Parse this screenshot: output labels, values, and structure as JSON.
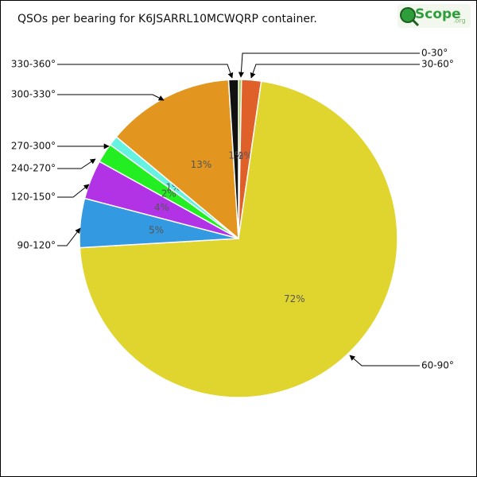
{
  "chart_data": {
    "type": "pie",
    "title": "QSOs per bearing for K6JSARRL10MCWQRP container.",
    "logo": "Scope",
    "logo_suffix": ".org",
    "categories": [
      "0-30°",
      "30-60°",
      "60-90°",
      "90-120°",
      "120-150°",
      "240-270°",
      "270-300°",
      "300-330°",
      "330-360°"
    ],
    "values": [
      0.3,
      2,
      72,
      5,
      4,
      2,
      1,
      13,
      1
    ],
    "value_labels": [
      null,
      "2%",
      "72%",
      "5%",
      "4%",
      "2%",
      "1%",
      "13%",
      "1%"
    ],
    "colors": [
      "#9cc43a",
      "#e0602a",
      "#e0d52e",
      "#3399e0",
      "#b233e6",
      "#22ee22",
      "#66f2e0",
      "#e3961f",
      "#111111"
    ]
  }
}
